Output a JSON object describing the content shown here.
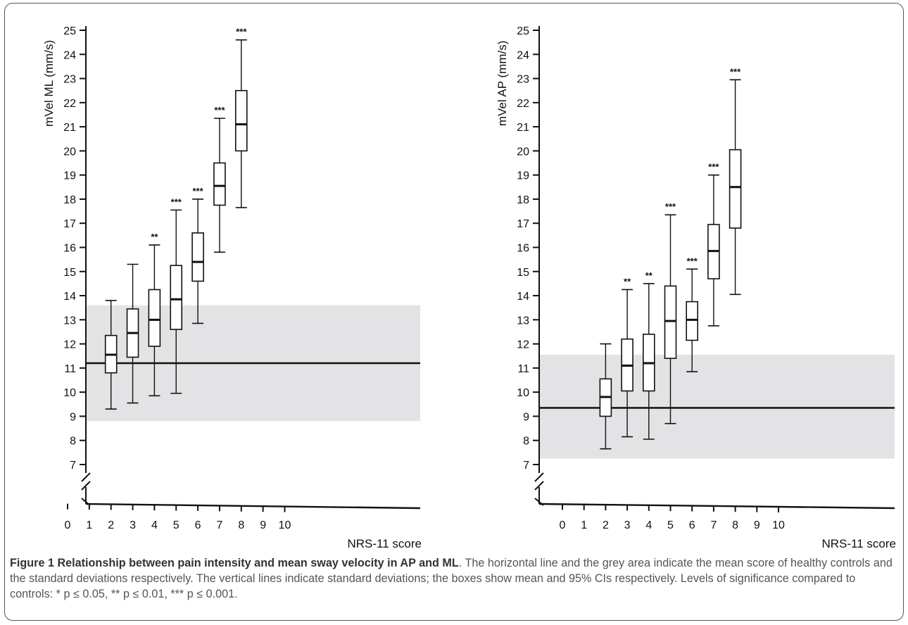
{
  "chart_data": [
    {
      "type": "box",
      "ylabel": "mVel ML (mm/s)",
      "xlabel": "NRS-11 score",
      "xticks": [
        0,
        1,
        2,
        3,
        4,
        5,
        6,
        7,
        8,
        9,
        10
      ],
      "yticks": [
        7,
        8,
        9,
        10,
        11,
        12,
        13,
        14,
        15,
        16,
        17,
        18,
        19,
        20,
        21,
        22,
        23,
        24,
        25
      ],
      "ylim": [
        7,
        25
      ],
      "axis_break": true,
      "control": {
        "mean": 11.2,
        "band": [
          8.8,
          13.6
        ]
      },
      "boxes": [
        {
          "x": 2,
          "mean": 11.55,
          "ci": [
            10.8,
            12.35
          ],
          "sd": [
            9.3,
            13.8
          ],
          "sig": ""
        },
        {
          "x": 3,
          "mean": 12.45,
          "ci": [
            11.45,
            13.45
          ],
          "sd": [
            9.55,
            15.3
          ],
          "sig": ""
        },
        {
          "x": 4,
          "mean": 13.0,
          "ci": [
            11.9,
            14.25
          ],
          "sd": [
            9.85,
            16.1
          ],
          "sig": "**"
        },
        {
          "x": 5,
          "mean": 13.85,
          "ci": [
            12.6,
            15.25
          ],
          "sd": [
            9.95,
            17.55
          ],
          "sig": "***"
        },
        {
          "x": 6,
          "mean": 15.4,
          "ci": [
            14.6,
            16.6
          ],
          "sd": [
            12.85,
            18.0
          ],
          "sig": "***"
        },
        {
          "x": 7,
          "mean": 18.55,
          "ci": [
            17.75,
            19.5
          ],
          "sd": [
            15.8,
            21.35
          ],
          "sig": "***"
        },
        {
          "x": 8,
          "mean": 21.1,
          "ci": [
            20.0,
            22.5
          ],
          "sd": [
            17.65,
            24.6
          ],
          "sig": "***"
        }
      ]
    },
    {
      "type": "box",
      "ylabel": "mVel AP (mm/s)",
      "xlabel": "NRS-11 score",
      "xticks": [
        0,
        1,
        2,
        3,
        4,
        5,
        6,
        7,
        8,
        9,
        10
      ],
      "yticks": [
        7,
        8,
        9,
        10,
        11,
        12,
        13,
        14,
        15,
        16,
        17,
        18,
        19,
        20,
        21,
        22,
        23,
        24,
        25
      ],
      "ylim": [
        7,
        25
      ],
      "axis_break": true,
      "control": {
        "mean": 9.35,
        "band": [
          7.25,
          11.55
        ]
      },
      "boxes": [
        {
          "x": 2,
          "mean": 9.8,
          "ci": [
            9.0,
            10.55
          ],
          "sd": [
            7.65,
            12.0
          ],
          "sig": ""
        },
        {
          "x": 3,
          "mean": 11.1,
          "ci": [
            10.05,
            12.2
          ],
          "sd": [
            8.15,
            14.25
          ],
          "sig": "**"
        },
        {
          "x": 4,
          "mean": 11.2,
          "ci": [
            10.05,
            12.4
          ],
          "sd": [
            8.05,
            14.5
          ],
          "sig": "**"
        },
        {
          "x": 5,
          "mean": 12.95,
          "ci": [
            11.4,
            14.4
          ],
          "sd": [
            8.7,
            17.35
          ],
          "sig": "***"
        },
        {
          "x": 6,
          "mean": 13.0,
          "ci": [
            12.15,
            13.75
          ],
          "sd": [
            10.85,
            15.1
          ],
          "sig": "***"
        },
        {
          "x": 7,
          "mean": 15.85,
          "ci": [
            14.7,
            16.95
          ],
          "sd": [
            12.75,
            19.0
          ],
          "sig": "***"
        },
        {
          "x": 8,
          "mean": 18.5,
          "ci": [
            16.8,
            20.05
          ],
          "sd": [
            14.05,
            22.95
          ],
          "sig": "***"
        }
      ]
    }
  ],
  "caption": {
    "lead": "Figure 1 Relationship between pain intensity and mean sway velocity in AP and ML",
    "text": ". The horizontal line and the grey area indicate the mean score of healthy controls and the standard deviations respectively. The vertical lines indicate standard deviations; the boxes show mean and 95% CIs respectively. Levels of significance compared to controls: * p ≤ 0.05, ** p ≤ 0.01, *** p ≤ 0.001."
  },
  "colors": {
    "band": "#e3e3e5",
    "ink": "#111111",
    "frame": "#555555",
    "caption": "#555555"
  }
}
